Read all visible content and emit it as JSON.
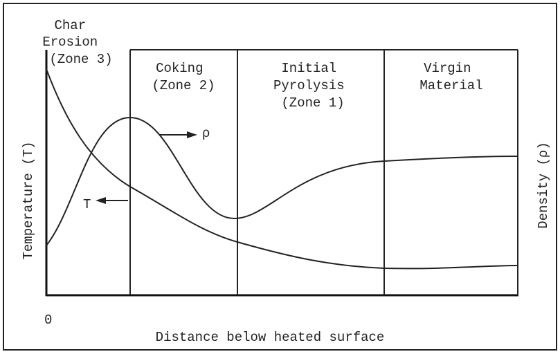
{
  "zones": [
    {
      "lines": [
        "Char",
        "Erosion",
        "(Zone 3)"
      ]
    },
    {
      "lines": [
        "Coking",
        "(Zone 2)"
      ]
    },
    {
      "lines": [
        "Initial",
        "Pyrolysis",
        "(Zone 1)"
      ]
    },
    {
      "lines": [
        "Virgin",
        "Material"
      ]
    }
  ],
  "curves": {
    "density": "ρ",
    "temperature": "T"
  },
  "axes": {
    "left": "Temperature (T)",
    "right": "Density (ρ)",
    "x": "Distance below heated surface",
    "origin": "0"
  }
}
